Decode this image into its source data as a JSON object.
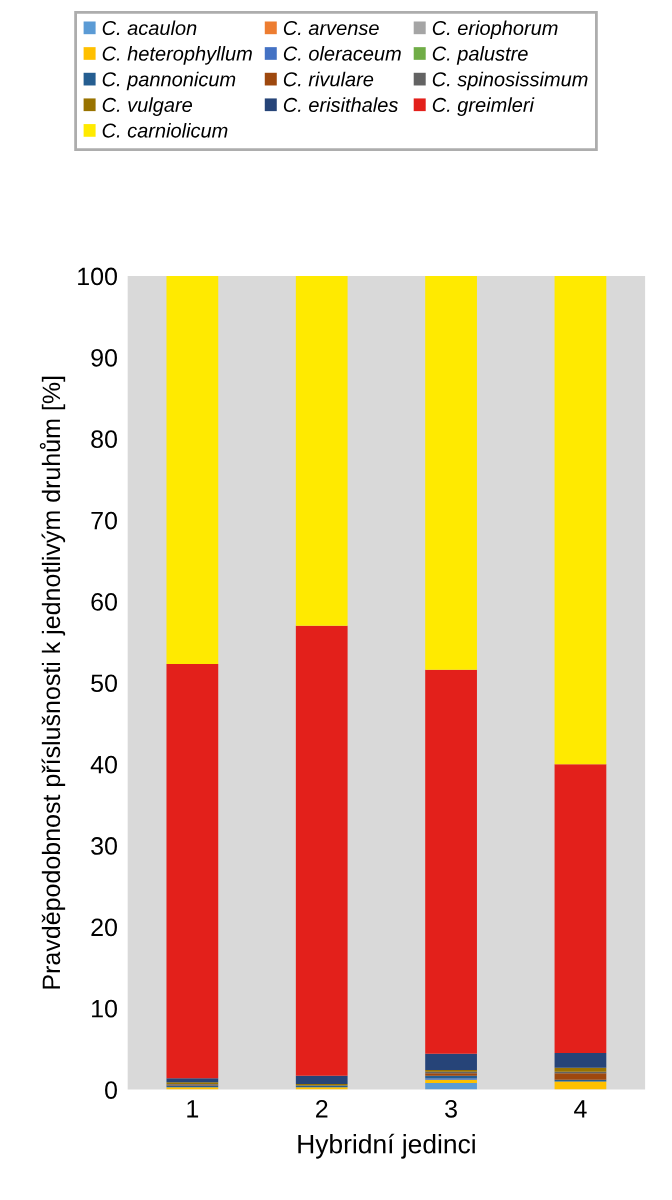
{
  "chart_data": {
    "type": "bar",
    "stacked": true,
    "xlabel": "Hybridní jedinci",
    "ylabel": "Pravděpodobnost příslušnosti k jednotlivým druhům [%]",
    "categories": [
      "1",
      "2",
      "3",
      "4"
    ],
    "ylim": [
      0,
      100
    ],
    "yticks": [
      0,
      10,
      20,
      30,
      40,
      50,
      60,
      70,
      80,
      90,
      100
    ],
    "grid": false,
    "legend": "top",
    "series": [
      {
        "name": "C. acaulon",
        "color": "#5b9bd5",
        "values": [
          0,
          0,
          0.8,
          0
        ]
      },
      {
        "name": "C. arvense",
        "color": "#ed7d31",
        "values": [
          0,
          0,
          0,
          0
        ]
      },
      {
        "name": "C. eriophorum",
        "color": "#a5a5a5",
        "values": [
          0,
          0,
          0,
          0
        ]
      },
      {
        "name": "C. heterophyllum",
        "color": "#ffc000",
        "values": [
          0.3,
          0.3,
          0.4,
          1.0
        ]
      },
      {
        "name": "C. oleraceum",
        "color": "#4472c4",
        "values": [
          0,
          0,
          0.2,
          0
        ]
      },
      {
        "name": "C. palustre",
        "color": "#70ad47",
        "values": [
          0,
          0,
          0,
          0
        ]
      },
      {
        "name": "C. pannonicum",
        "color": "#255e91",
        "values": [
          0.2,
          0.2,
          0.3,
          0.2
        ]
      },
      {
        "name": "C. rivulare",
        "color": "#9e480e",
        "values": [
          0.1,
          0,
          0.3,
          0.8
        ]
      },
      {
        "name": "C. spinosissimum",
        "color": "#636363",
        "values": [
          0.1,
          0,
          0.2,
          0.2
        ]
      },
      {
        "name": "C. vulgare",
        "color": "#997300",
        "values": [
          0.2,
          0.2,
          0.2,
          0.5
        ]
      },
      {
        "name": "C. erisithales",
        "color": "#264478",
        "values": [
          0.5,
          1.0,
          2.0,
          1.8
        ]
      },
      {
        "name": "C. greimleri",
        "color": "#e3201b",
        "values": [
          50.9,
          55.3,
          47.2,
          35.5
        ]
      },
      {
        "name": "C. carniolicum",
        "color": "#ffea00",
        "values": [
          47.7,
          43.0,
          48.4,
          60.0
        ]
      }
    ]
  }
}
